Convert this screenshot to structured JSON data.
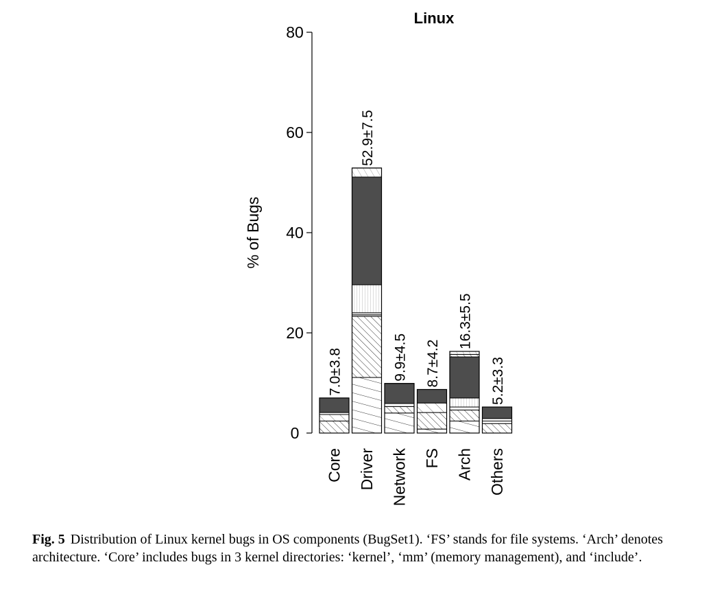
{
  "chart_data": {
    "type": "bar",
    "title": "Linux",
    "ylabel": "% of Bugs",
    "xlabel": "",
    "ylim": [
      0,
      80
    ],
    "yticks": [
      0,
      20,
      40,
      60,
      80
    ],
    "grid": false,
    "categories": [
      "Core",
      "Driver",
      "Network",
      "FS",
      "Arch",
      "Others"
    ],
    "values": [
      7.0,
      52.9,
      9.9,
      8.7,
      16.3,
      5.2
    ],
    "value_labels": [
      "7.0±3.8",
      "52.9±7.5",
      "9.9±4.5",
      "8.7±4.2",
      "16.3±5.5",
      "5.2±3.3"
    ],
    "segments": [
      [
        {
          "value": 2.4,
          "fill": "hatch-diag"
        },
        {
          "value": 1.3,
          "fill": "hatch-diag-light"
        },
        {
          "value": 0.4,
          "fill": "white"
        },
        {
          "value": 2.9,
          "fill": "dark"
        }
      ],
      [
        {
          "value": 11.1,
          "fill": "hatch-slant"
        },
        {
          "value": 12.2,
          "fill": "hatch-diag"
        },
        {
          "value": 0.3,
          "fill": "white"
        },
        {
          "value": 0.4,
          "fill": "white"
        },
        {
          "value": 5.6,
          "fill": "hatch-vertical"
        },
        {
          "value": 21.5,
          "fill": "dark"
        },
        {
          "value": 1.8,
          "fill": "hatch-light"
        }
      ],
      [
        {
          "value": 4.0,
          "fill": "hatch-slant"
        },
        {
          "value": 1.3,
          "fill": "hatch-diag"
        },
        {
          "value": 0.6,
          "fill": "white"
        },
        {
          "value": 4.0,
          "fill": "dark"
        }
      ],
      [
        {
          "value": 0.8,
          "fill": "hatch-slant"
        },
        {
          "value": 3.3,
          "fill": "hatch-diag"
        },
        {
          "value": 1.9,
          "fill": "hatch-diag-light"
        },
        {
          "value": 2.7,
          "fill": "dark"
        }
      ],
      [
        {
          "value": 2.4,
          "fill": "hatch-slant"
        },
        {
          "value": 2.2,
          "fill": "hatch-diag"
        },
        {
          "value": 0.6,
          "fill": "white"
        },
        {
          "value": 1.8,
          "fill": "hatch-vertical"
        },
        {
          "value": 8.2,
          "fill": "dark"
        },
        {
          "value": 0.5,
          "fill": "hatch-diag"
        },
        {
          "value": 0.6,
          "fill": "hatch-light"
        }
      ],
      [
        {
          "value": 1.9,
          "fill": "hatch-diag"
        },
        {
          "value": 0.5,
          "fill": "white"
        },
        {
          "value": 0.5,
          "fill": "white"
        },
        {
          "value": 2.3,
          "fill": "dark"
        }
      ]
    ],
    "colors": {
      "dark": "#4d4d4d",
      "line": "#000000",
      "hatch": "#333333"
    }
  },
  "caption": {
    "label": "Fig. 5",
    "text": "Distribution of Linux kernel bugs in OS components (BugSet1). ‘FS’ stands for file systems. ‘Arch’ denotes architecture. ‘Core’ includes bugs in 3 kernel directories: ‘kernel’, ‘mm’ (memory management), and ‘include’."
  }
}
